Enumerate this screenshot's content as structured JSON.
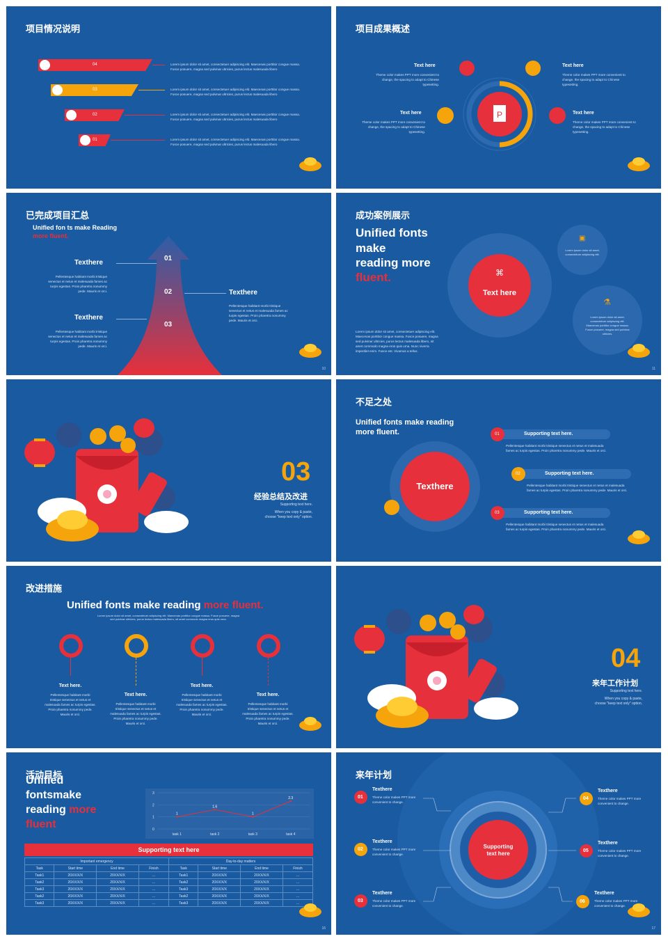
{
  "colors": {
    "bg": "#1a5aa0",
    "red": "#e6303b",
    "orange": "#f5a40c",
    "dark": "#174e8e"
  },
  "lorem": "Lorem ipsum dolor sit amet, consectetuer adipiscing elit. Maecenas porttitor congue massa. Fusce posuere, magna sed pulvinar ultricies, purus lectus malesuada libero",
  "s1": {
    "title": "项目情况说明",
    "items": [
      {
        "num": "04"
      },
      {
        "num": "03"
      },
      {
        "num": "02"
      },
      {
        "num": "01"
      }
    ]
  },
  "s2": {
    "title": "项目成果概述",
    "th": "Text here",
    "desc": "Theme color makes PPT more convenient to change, the spacing to adapt to Chinese typesetting."
  },
  "s3": {
    "title": "已完成项目汇总",
    "sub1": "Unified fon ts make Reading",
    "sub2": "more fluent.",
    "n1": "01",
    "n2": "02",
    "n3": "03",
    "tx": "Texthere",
    "desc": "Pellentesque habitant morbi tristique senectus et netus et malesuada fames ac turpis egestas. Proin pharetra nonummy pede. Mauris et orci.",
    "page": "10"
  },
  "s4": {
    "title": "成功案例展示",
    "h1": "Unified fonts",
    "h2": "make",
    "h3": "reading more",
    "h4": "fluent.",
    "center": "Text here",
    "c1": "Lorem ipsum dolor sit amet, consectetuer adipiscing elit.",
    "c2": "Lorem ipsum dolor sit amet, consectetuer adipiscing elit. Maecenas porttitor congue massa. Fusce posuere, magna sed pulvinar ultricies.",
    "body": "Lorem ipsum dolor sit amet, consectetuer adipiscing elit. Maecenas porttitor congue massa. Fusce posuere, magna sed pulvinar ultricies, purus lectus malesuada libero, sit amet commodo magna eros quis urna. Nunc viverra imperdiet enim. Fusce est. Vivamus a tellus.",
    "page": "11"
  },
  "s5": {
    "num": "03",
    "cn": "经验总结及改进",
    "sub": "Supporting text here.",
    "note1": "When you copy & paste,",
    "note2": "choose \"keep text only\" option."
  },
  "s6": {
    "title": "不足之处",
    "h1": "Unified fonts make reading",
    "h2": "more fluent.",
    "center": "Texthere",
    "items": [
      {
        "num": "01",
        "label": "Supporting text here."
      },
      {
        "num": "02",
        "label": "Supporting text here."
      },
      {
        "num": "03",
        "label": "Supporting text here."
      }
    ],
    "desc": "Pellentesque habitant morbi tristique senectus et netus et malesuada fames ac turpis egestas. Proin pharetra nonummy pede. Mauris et orci."
  },
  "s7": {
    "title": "改进措施",
    "h_white": "Unified fonts make reading",
    "h_red": "more fluent.",
    "sub": "Lorem ipsum dolor sit amet, consectetuer adipiscing elit. Maecenas porttitor congue massa. Fusce posuere, magna sed pulvinar ultricies, purus lectus malesuada libero, sit amet commodo magna eros quis urna.",
    "label": "Text here.",
    "desc": "Pellentesque habitant morbi tristique senectus et netus et malesuada fames ac turpis egestas. Proin pharetra nonummy pede. Mauris et orci."
  },
  "s8": {
    "num": "04",
    "cn": "来年工作计划",
    "sub": "Supporting text here.",
    "note1": "When you copy & paste,",
    "note2": "choose \"keep text only\" option."
  },
  "s9": {
    "title": "活动目标",
    "h1": "Unified",
    "h2": "fontsmake",
    "h3a": "reading ",
    "h3b": "more",
    "h4": "fluent",
    "support": "Supporting text here",
    "group1": "Important emergency",
    "group2": "Day-to-day matters",
    "cols": [
      "Task",
      "Start time",
      "End time",
      "Finish",
      "Task",
      "Start time",
      "End time",
      "Finish"
    ],
    "rows": [
      [
        "Task1",
        "20XX/X/X",
        "20XX/X/X",
        "...",
        "Task1",
        "20XX/X/X",
        "20XX/X/X",
        "..."
      ],
      [
        "Task2",
        "20XX/X/X",
        "20XX/X/X",
        "...",
        "Task2",
        "20XX/X/X",
        "20XX/X/X",
        "..."
      ],
      [
        "Task3",
        "20XX/X/X",
        "20XX/X/X",
        "...",
        "Task3",
        "20XX/X/X",
        "20XX/X/X",
        "..."
      ],
      [
        "Task2",
        "20XX/X/X",
        "20XX/X/X",
        "...",
        "Task2",
        "20XX/X/X",
        "20XX/X/X",
        "..."
      ],
      [
        "Task3",
        "20XX/X/X",
        "20XX/X/X",
        "...",
        "Task3",
        "20XX/X/X",
        "20XX/X/X",
        "..."
      ]
    ],
    "page": "16"
  },
  "chart_data": {
    "type": "line",
    "categories": [
      "task 1",
      "task 2",
      "task 3",
      "task 4"
    ],
    "yticks": [
      "0",
      "1",
      "2",
      "3"
    ],
    "ylim": [
      0,
      3
    ],
    "series": [
      {
        "values": [
          1,
          1.6,
          1,
          2.3
        ]
      }
    ],
    "labels": [
      "1",
      "1.6",
      "1",
      "2.3"
    ]
  },
  "s10": {
    "title": "来年计划",
    "center1": "Supporting",
    "center2": "text here",
    "items": [
      {
        "num": "01",
        "label": "Texthere"
      },
      {
        "num": "02",
        "label": "Texthere"
      },
      {
        "num": "03",
        "label": "Texthere"
      },
      {
        "num": "04",
        "label": "Texthere"
      },
      {
        "num": "05",
        "label": "Texthere"
      },
      {
        "num": "06",
        "label": "Texthere"
      }
    ],
    "desc": "Theme color makes PPT more convenient to change.",
    "page": "17"
  }
}
